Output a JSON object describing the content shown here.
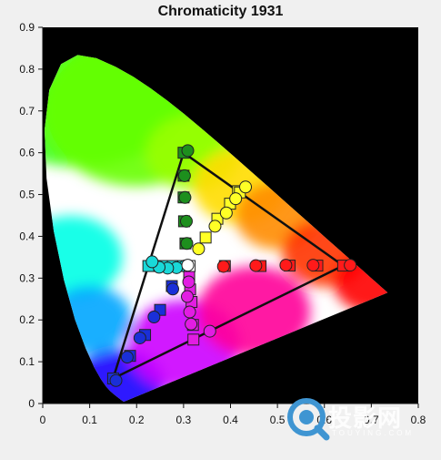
{
  "chart_data": {
    "type": "scatter",
    "title": "Chromaticity 1931",
    "xlabel": "",
    "ylabel": "",
    "xlim": [
      0,
      0.8
    ],
    "ylim": [
      0,
      0.9
    ],
    "x_ticks": [
      "0",
      "0.1",
      "0.2",
      "0.3",
      "0.4",
      "0.5",
      "0.6",
      "0.7",
      "0.8"
    ],
    "x_tick_values": [
      0,
      0.1,
      0.2,
      0.3,
      0.4,
      0.5,
      0.6,
      0.7,
      0.8
    ],
    "y_ticks": [
      "0",
      "0.1",
      "0.2",
      "0.3",
      "0.4",
      "0.5",
      "0.6",
      "0.7",
      "0.8",
      "0.9"
    ],
    "y_tick_values": [
      0,
      0.1,
      0.2,
      0.3,
      0.4,
      0.5,
      0.6,
      0.7,
      0.8,
      0.9
    ],
    "background": "#000000",
    "gamut_triangle": [
      [
        0.64,
        0.33
      ],
      [
        0.3,
        0.6
      ],
      [
        0.15,
        0.06
      ]
    ],
    "series": [
      {
        "color": "#ff1a1a",
        "target_squares": [
          [
            0.388,
            0.329
          ],
          [
            0.464,
            0.329
          ],
          [
            0.526,
            0.33
          ],
          [
            0.585,
            0.33
          ],
          [
            0.64,
            0.33
          ]
        ],
        "measured_circles": [
          [
            0.385,
            0.328
          ],
          [
            0.454,
            0.33
          ],
          [
            0.518,
            0.331
          ],
          [
            0.576,
            0.331
          ],
          [
            0.655,
            0.331
          ]
        ]
      },
      {
        "color": "#1d8f1d",
        "target_squares": [
          [
            0.304,
            0.383
          ],
          [
            0.301,
            0.436
          ],
          [
            0.3,
            0.493
          ],
          [
            0.3,
            0.545
          ],
          [
            0.3,
            0.6
          ]
        ],
        "measured_circles": [
          [
            0.307,
            0.383
          ],
          [
            0.306,
            0.436
          ],
          [
            0.303,
            0.493
          ],
          [
            0.302,
            0.545
          ],
          [
            0.309,
            0.605
          ]
        ]
      },
      {
        "color": "#1a2fd8",
        "target_squares": [
          [
            0.275,
            0.281
          ],
          [
            0.25,
            0.224
          ],
          [
            0.218,
            0.164
          ],
          [
            0.186,
            0.114
          ],
          [
            0.15,
            0.06
          ]
        ],
        "measured_circles": [
          [
            0.277,
            0.274
          ],
          [
            0.237,
            0.207
          ],
          [
            0.207,
            0.157
          ],
          [
            0.18,
            0.111
          ],
          [
            0.156,
            0.055
          ]
        ]
      },
      {
        "color": "#19d8d8",
        "target_squares": [
          [
            0.294,
            0.329
          ],
          [
            0.276,
            0.329
          ],
          [
            0.254,
            0.329
          ],
          [
            0.236,
            0.329
          ],
          [
            0.225,
            0.329
          ]
        ],
        "measured_circles": [
          [
            0.303,
            0.329
          ],
          [
            0.285,
            0.325
          ],
          [
            0.266,
            0.324
          ],
          [
            0.248,
            0.326
          ],
          [
            0.233,
            0.339
          ]
        ]
      },
      {
        "color": "#ffff26",
        "target_squares": [
          [
            0.347,
            0.397
          ],
          [
            0.372,
            0.442
          ],
          [
            0.399,
            0.478
          ],
          [
            0.416,
            0.508
          ],
          [
            0.42,
            0.505
          ]
        ],
        "measured_circles": [
          [
            0.332,
            0.37
          ],
          [
            0.367,
            0.424
          ],
          [
            0.391,
            0.456
          ],
          [
            0.411,
            0.49
          ],
          [
            0.432,
            0.518
          ]
        ]
      },
      {
        "color": "#e21de2",
        "target_squares": [
          [
            0.312,
            0.303
          ],
          [
            0.314,
            0.273
          ],
          [
            0.317,
            0.243
          ],
          [
            0.32,
            0.188
          ],
          [
            0.321,
            0.153
          ]
        ],
        "measured_circles": [
          [
            0.311,
            0.291
          ],
          [
            0.308,
            0.256
          ],
          [
            0.313,
            0.219
          ],
          [
            0.316,
            0.19
          ],
          [
            0.356,
            0.173
          ]
        ]
      },
      {
        "color": "#ffffff",
        "target_squares": [
          [
            0.313,
            0.329
          ]
        ],
        "measured_circles": [
          [
            0.309,
            0.331
          ]
        ]
      }
    ]
  },
  "watermark": {
    "text": "投影网",
    "sub": "TOUYING.COM",
    "color": "#3f95d2"
  }
}
